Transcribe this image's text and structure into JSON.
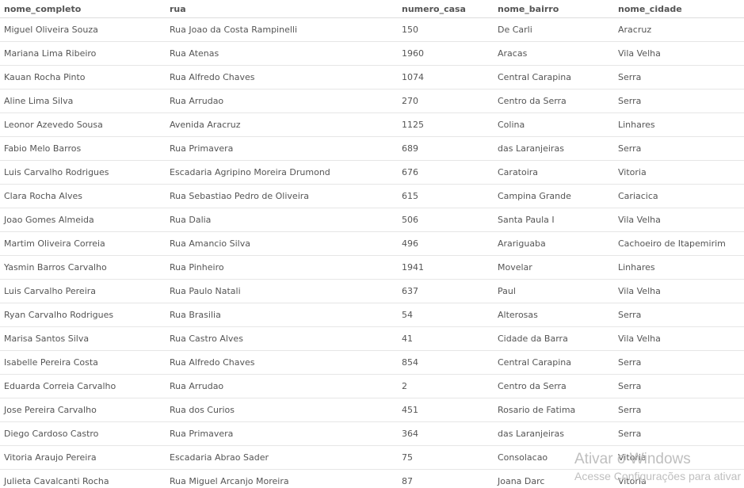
{
  "table": {
    "columns": [
      "nome_completo",
      "rua",
      "numero_casa",
      "nome_bairro",
      "nome_cidade"
    ],
    "rows": [
      [
        "Miguel Oliveira Souza",
        "Rua Joao da Costa Rampinelli",
        "150",
        "De Carli",
        "Aracruz"
      ],
      [
        "Mariana Lima Ribeiro",
        "Rua Atenas",
        "1960",
        "Aracas",
        "Vila Velha"
      ],
      [
        "Kauan Rocha Pinto",
        "Rua Alfredo Chaves",
        "1074",
        "Central Carapina",
        "Serra"
      ],
      [
        "Aline Lima Silva",
        "Rua Arrudao",
        "270",
        "Centro da Serra",
        "Serra"
      ],
      [
        "Leonor Azevedo Sousa",
        "Avenida Aracruz",
        "1125",
        "Colina",
        "Linhares"
      ],
      [
        "Fabio Melo Barros",
        "Rua Primavera",
        "689",
        "das Laranjeiras",
        "Serra"
      ],
      [
        "Luis Carvalho Rodrigues",
        "Escadaria Agripino Moreira Drumond",
        "676",
        "Caratoira",
        "Vitoria"
      ],
      [
        "Clara Rocha Alves",
        "Rua Sebastiao Pedro de Oliveira",
        "615",
        "Campina Grande",
        "Cariacica"
      ],
      [
        "Joao Gomes Almeida",
        "Rua Dalia",
        "506",
        "Santa Paula I",
        "Vila Velha"
      ],
      [
        "Martim Oliveira Correia",
        "Rua Amancio Silva",
        "496",
        "Arariguaba",
        "Cachoeiro de Itapemirim"
      ],
      [
        "Yasmin Barros Carvalho",
        "Rua Pinheiro",
        "1941",
        "Movelar",
        "Linhares"
      ],
      [
        "Luis Carvalho Pereira",
        "Rua Paulo Natali",
        "637",
        "Paul",
        "Vila Velha"
      ],
      [
        "Ryan Carvalho Rodrigues",
        "Rua Brasilia",
        "54",
        "Alterosas",
        "Serra"
      ],
      [
        "Marisa Santos Silva",
        "Rua Castro Alves",
        "41",
        "Cidade da Barra",
        "Vila Velha"
      ],
      [
        "Isabelle Pereira Costa",
        "Rua Alfredo Chaves",
        "854",
        "Central Carapina",
        "Serra"
      ],
      [
        "Eduarda Correia Carvalho",
        "Rua Arrudao",
        "2",
        "Centro da Serra",
        "Serra"
      ],
      [
        "Jose Pereira Carvalho",
        "Rua dos Curios",
        "451",
        "Rosario de Fatima",
        "Serra"
      ],
      [
        "Diego Cardoso Castro",
        "Rua Primavera",
        "364",
        "das Laranjeiras",
        "Serra"
      ],
      [
        "Vitoria Araujo Pereira",
        "Escadaria Abrao Sader",
        "75",
        "Consolacao",
        "Vitoria"
      ],
      [
        "Julieta Cavalcanti Rocha",
        "Rua Miguel Arcanjo Moreira",
        "87",
        "Joana Darc",
        "Vitoria"
      ]
    ]
  },
  "watermark": {
    "title": "Ativar o Windows",
    "subtitle": "Acesse Configurações para ativar"
  }
}
